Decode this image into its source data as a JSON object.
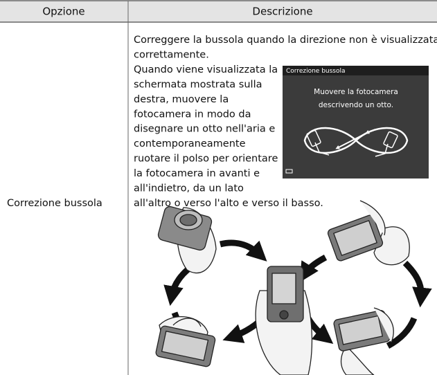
{
  "table": {
    "columns": [
      "Opzione",
      "Descrizione"
    ],
    "rows": [
      {
        "option": "Correzione bussola",
        "description": [
          "Correggere la bussola quando la direzione non è visualizzata",
          "correttamente.",
          "Quando viene visualizzata la",
          "schermata mostrata sulla",
          "destra, muovere la",
          "fotocamera in modo da",
          "disegnare un otto nell'aria e",
          "contemporaneamente",
          "ruotare il polso per orientare",
          "la fotocamera in avanti e",
          "all'indietro, da un lato",
          "all'altro o verso l'alto e verso il basso."
        ],
        "screen": {
          "title": "Correzione bussola",
          "message": [
            "Muovere la fotocamera",
            "descrivendo un otto."
          ]
        }
      }
    ]
  }
}
